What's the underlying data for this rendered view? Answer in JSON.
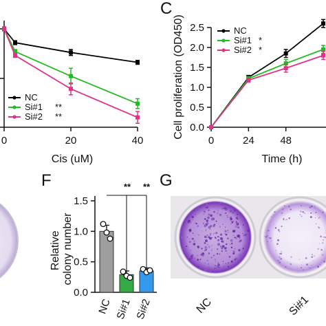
{
  "panel_letters": {
    "c": "C",
    "f": "F",
    "g": "G"
  },
  "colors": {
    "nc": "#000000",
    "si1": "#22bb22",
    "si2": "#dd3388",
    "bar_nc": "#9e9e9e",
    "bar_si1": "#33aa44",
    "bar_si2": "#3399ee",
    "stain": "#6a2aa0"
  },
  "chart_data": [
    {
      "panel": "left",
      "type": "line",
      "xlabel": "Cis (uM)",
      "ylabel": "",
      "xticks": [
        "0",
        "20",
        "40"
      ],
      "xlim": [
        0,
        40
      ],
      "ylim": [
        0,
        1.0
      ],
      "x": [
        0,
        3.3,
        20,
        40
      ],
      "series": [
        {
          "name": "NC",
          "sig": "",
          "values": [
            1.0,
            0.86,
            0.76,
            0.66
          ],
          "err": [
            0.02,
            0.02,
            0.03,
            0.02
          ]
        },
        {
          "name": "Si#1",
          "sig": "**",
          "values": [
            1.0,
            0.77,
            0.52,
            0.24
          ],
          "err": [
            0.02,
            0.02,
            0.08,
            0.05
          ]
        },
        {
          "name": "Si#2",
          "sig": "**",
          "values": [
            1.0,
            0.73,
            0.39,
            0.1
          ],
          "err": [
            0.02,
            0.02,
            0.06,
            0.06
          ]
        }
      ]
    },
    {
      "panel": "C",
      "type": "line",
      "xlabel": "Time (h)",
      "ylabel": "Cell proliferation (OD450)",
      "yticks": [
        "0.0",
        "0.5",
        "1.0",
        "1.5",
        "2.0",
        "2.5"
      ],
      "xticks": [
        "0",
        "24",
        "48"
      ],
      "xlim": [
        0,
        72
      ],
      "ylim": [
        0,
        2.5
      ],
      "x": [
        0,
        24,
        48,
        72
      ],
      "series": [
        {
          "name": "NC",
          "sig": "",
          "values": [
            0.0,
            1.25,
            1.85,
            2.6
          ],
          "err": [
            0.0,
            0.05,
            0.1,
            0.1
          ]
        },
        {
          "name": "Si#1",
          "sig": "*",
          "values": [
            0.0,
            1.22,
            1.6,
            1.95
          ],
          "err": [
            0.0,
            0.05,
            0.1,
            0.1
          ]
        },
        {
          "name": "Si#2",
          "sig": "*",
          "values": [
            0.0,
            1.18,
            1.48,
            1.8
          ],
          "err": [
            0.0,
            0.05,
            0.1,
            0.1
          ]
        }
      ]
    },
    {
      "panel": "F",
      "type": "bar",
      "ylabel": "Relative colony number",
      "yticks": [
        "0.0",
        "0.5",
        "1.0",
        "1.5"
      ],
      "ylim": [
        0,
        1.5
      ],
      "categories": [
        "NC",
        "Si#1",
        "Si#2"
      ],
      "values": [
        1.0,
        0.29,
        0.35
      ],
      "err": [
        0.1,
        0.06,
        0.05
      ],
      "points": [
        [
          1.12,
          0.98,
          0.88
        ],
        [
          0.34,
          0.27,
          0.24
        ],
        [
          0.38,
          0.33,
          0.36
        ]
      ],
      "significance": [
        "**",
        "**"
      ]
    }
  ],
  "panel_g": {
    "labels": [
      "NC",
      "Si#1"
    ]
  }
}
